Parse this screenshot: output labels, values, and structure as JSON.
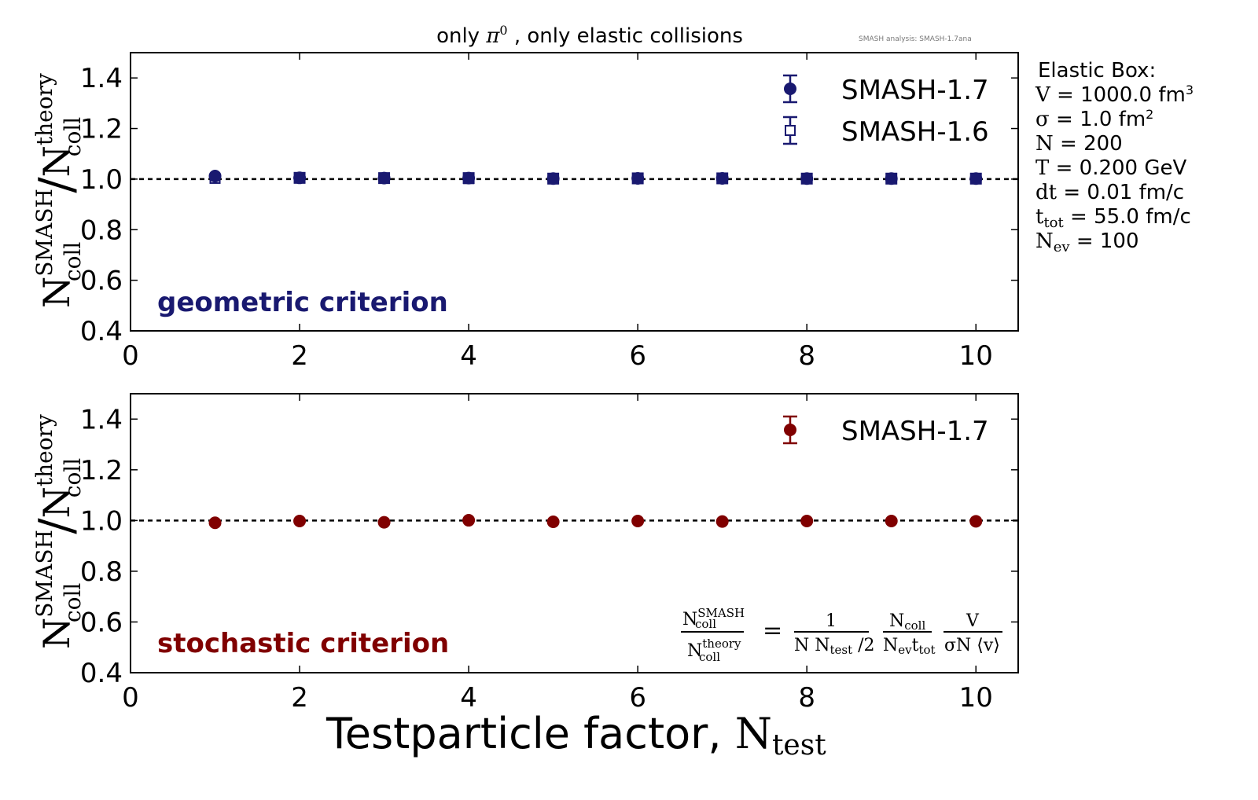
{
  "title": "only π⁰ , only elastic collisions",
  "title_parts": {
    "pre": "only ",
    "pi": "π",
    "sup": "0",
    "post": " , only elastic collisions"
  },
  "watermark": "SMASH analysis: SMASH-1.7ana",
  "colors": {
    "navy": "#191970",
    "darkred": "#800000",
    "axis": "#000000"
  },
  "info_box": {
    "heading": "Elastic Box:",
    "lines": [
      {
        "sym": "V",
        "sub": "",
        "val": " = 1000.0 fm",
        "sup": "3"
      },
      {
        "sym": "σ",
        "sub": "",
        "val": " = 1.0 fm",
        "sup": "2"
      },
      {
        "sym": "N",
        "sub": "",
        "val": " = 200",
        "sup": ""
      },
      {
        "sym": "T",
        "sub": "",
        "val": " = 0.200 GeV",
        "sup": ""
      },
      {
        "sym": "dt",
        "sub": "",
        "val": " = 0.01 fm/c",
        "sup": ""
      },
      {
        "sym": "t",
        "sub": "tot",
        "val": " = 55.0 fm/c",
        "sup": ""
      },
      {
        "sym": "N",
        "sub": "ev",
        "val": " = 100",
        "sup": ""
      }
    ]
  },
  "formula": {
    "lhs_num": "N",
    "lhs_num_sup": "SMASH",
    "lhs_num_sub": "coll",
    "lhs_den": "N",
    "lhs_den_sup": "theory",
    "lhs_den_sub": "coll",
    "eq": "=",
    "f1_num": "1",
    "f1_den_a": "N N",
    "f1_den_sub": "test",
    "f1_den_b": " /2",
    "f2_num": "N",
    "f2_num_sub": "coll",
    "f2_den_a": "N",
    "f2_den_sub1": "ev",
    "f2_den_b": "t",
    "f2_den_sub2": "tot",
    "f3_num": "V",
    "f3_den": "σN ⟨v⟩"
  },
  "ylabel": {
    "main": "N",
    "sup1": "SMASH",
    "sub1": "coll",
    "slash": "/",
    "main2": "N",
    "sup2": "theory",
    "sub2": "coll"
  },
  "xlabel": {
    "text": "Testparticle factor, ",
    "sym": "N",
    "sub": "test"
  },
  "chart_data": [
    {
      "type": "scatter",
      "panel": "top",
      "annotation": "geometric criterion",
      "xlabel": "Testparticle factor, N_test",
      "ylabel": "N_coll^SMASH / N_coll^theory",
      "xlim": [
        0,
        10.5
      ],
      "ylim": [
        0.4,
        1.5
      ],
      "xticks": [
        0,
        2,
        4,
        6,
        8,
        10
      ],
      "yticks": [
        0.4,
        0.6,
        0.8,
        1.0,
        1.2,
        1.4
      ],
      "xtick_labels": [
        "0",
        "2",
        "4",
        "6",
        "8",
        "10"
      ],
      "ytick_labels": [
        "0.4",
        "0.6",
        "0.8",
        "1.0",
        "1.2",
        "1.4"
      ],
      "reference_line": 1.0,
      "legend_position": "top-right",
      "series": [
        {
          "name": "SMASH-1.7",
          "marker": "circle-filled",
          "color": "#191970",
          "x": [
            1,
            2,
            3,
            4,
            5,
            6,
            7,
            8,
            9,
            10
          ],
          "y": [
            1.012,
            1.005,
            1.004,
            1.004,
            1.002,
            1.003,
            1.003,
            1.002,
            1.002,
            1.002
          ]
        },
        {
          "name": "SMASH-1.6",
          "marker": "square-open",
          "color": "#191970",
          "x": [
            1,
            2,
            3,
            4,
            5,
            6,
            7,
            8,
            9,
            10
          ],
          "y": [
            1.003,
            1.004,
            1.003,
            1.002,
            1.001,
            1.002,
            1.002,
            1.002,
            1.001,
            1.001
          ]
        }
      ]
    },
    {
      "type": "scatter",
      "panel": "bottom",
      "annotation": "stochastic criterion",
      "xlabel": "Testparticle factor, N_test",
      "ylabel": "N_coll^SMASH / N_coll^theory",
      "xlim": [
        0,
        10.5
      ],
      "ylim": [
        0.4,
        1.5
      ],
      "xticks": [
        0,
        2,
        4,
        6,
        8,
        10
      ],
      "yticks": [
        0.4,
        0.6,
        0.8,
        1.0,
        1.2,
        1.4
      ],
      "xtick_labels": [
        "0",
        "2",
        "4",
        "6",
        "8",
        "10"
      ],
      "ytick_labels": [
        "0.4",
        "0.6",
        "0.8",
        "1.0",
        "1.2",
        "1.4"
      ],
      "reference_line": 1.0,
      "legend_position": "top-right",
      "series": [
        {
          "name": "SMASH-1.7",
          "marker": "circle-filled",
          "color": "#800000",
          "x": [
            1,
            2,
            3,
            4,
            5,
            6,
            7,
            8,
            9,
            10
          ],
          "y": [
            0.991,
            0.998,
            0.993,
            1.001,
            0.995,
            0.998,
            0.996,
            0.998,
            0.998,
            0.997
          ]
        }
      ]
    }
  ]
}
